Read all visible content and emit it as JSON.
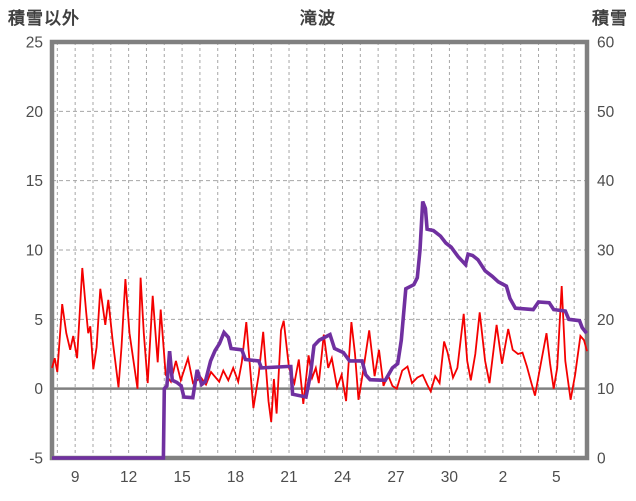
{
  "header": {
    "left_axis_title": "積雪以外",
    "chart_title": "滝波",
    "right_axis_title": "積雪"
  },
  "colors": {
    "non_snow_series": "#f40000",
    "snow_depth_series": "#7030a0",
    "frame": "#808080",
    "zero_line": "#808080",
    "gridline": "#a6a6a6",
    "tick_text": "#4d4d4d",
    "header_text": "#404040",
    "background": "#ffffff"
  },
  "chart_data": {
    "type": "line",
    "title": "滝波",
    "legend_position": "none",
    "grid": true,
    "x_unit": "date (day of month)",
    "x_domain": [
      -0.3,
      29.72
    ],
    "x_tick_positions": [
      1,
      4,
      7,
      10,
      13,
      16,
      19,
      22,
      25,
      28
    ],
    "x_tick_labels": [
      "9",
      "12",
      "15",
      "18",
      "21",
      "24",
      "27",
      "30",
      "2",
      "5"
    ],
    "x_gridlines": [
      0,
      1,
      2,
      3,
      4,
      5,
      6,
      7,
      8,
      9,
      10,
      11,
      12,
      13,
      14,
      15,
      16,
      17,
      18,
      19,
      20,
      21,
      22,
      23,
      24,
      25,
      26,
      27,
      28,
      29
    ],
    "left_axis": {
      "label": "積雪以外",
      "min": -5,
      "max": 25,
      "ticks": [
        -5,
        0,
        5,
        10,
        15,
        20,
        25
      ],
      "gridlines": [
        5,
        10,
        15,
        20
      ],
      "zero_line": 0
    },
    "right_axis": {
      "label": "積雪",
      "min": 0,
      "max": 60,
      "ticks": [
        0,
        10,
        20,
        30,
        40,
        50,
        60
      ]
    },
    "series": [
      {
        "name": "積雪以外",
        "axis": "left",
        "color": "#f40000",
        "width": 1.8,
        "points": [
          [
            -0.3,
            1.5
          ],
          [
            -0.15,
            2.2
          ],
          [
            0.0,
            1.2
          ],
          [
            0.27,
            6.1
          ],
          [
            0.5,
            4.0
          ],
          [
            0.72,
            2.8
          ],
          [
            0.89,
            3.8
          ],
          [
            1.11,
            2.2
          ],
          [
            1.4,
            8.7
          ],
          [
            1.62,
            5.5
          ],
          [
            1.73,
            4.0
          ],
          [
            1.85,
            4.5
          ],
          [
            2.02,
            1.4
          ],
          [
            2.2,
            3.0
          ],
          [
            2.41,
            7.2
          ],
          [
            2.69,
            4.6
          ],
          [
            2.86,
            6.4
          ],
          [
            3.1,
            3.5
          ],
          [
            3.26,
            1.9
          ],
          [
            3.43,
            0.1
          ],
          [
            3.6,
            3.0
          ],
          [
            3.82,
            7.9
          ],
          [
            4.05,
            4.0
          ],
          [
            4.16,
            3.0
          ],
          [
            4.5,
            0.0
          ],
          [
            4.67,
            8.0
          ],
          [
            4.85,
            4.0
          ],
          [
            5.07,
            0.4
          ],
          [
            5.35,
            6.7
          ],
          [
            5.63,
            1.9
          ],
          [
            5.8,
            5.7
          ],
          [
            6.08,
            1.0
          ],
          [
            6.37,
            0.5
          ],
          [
            6.65,
            2.0
          ],
          [
            6.93,
            0.6
          ],
          [
            7.33,
            2.2
          ],
          [
            7.61,
            0.4
          ],
          [
            8.06,
            0.8
          ],
          [
            8.34,
            0.3
          ],
          [
            8.62,
            1.2
          ],
          [
            9.08,
            0.5
          ],
          [
            9.31,
            1.3
          ],
          [
            9.59,
            0.6
          ],
          [
            9.87,
            1.5
          ],
          [
            10.15,
            0.5
          ],
          [
            10.35,
            1.9
          ],
          [
            10.6,
            4.8
          ],
          [
            11.0,
            -1.4
          ],
          [
            11.3,
            1.0
          ],
          [
            11.55,
            4.1
          ],
          [
            11.85,
            -0.9
          ],
          [
            12.0,
            -2.4
          ],
          [
            12.15,
            0.7
          ],
          [
            12.3,
            -1.8
          ],
          [
            12.55,
            4.2
          ],
          [
            12.7,
            4.9
          ],
          [
            13.0,
            1.5
          ],
          [
            13.3,
            0.4
          ],
          [
            13.55,
            2.1
          ],
          [
            13.8,
            -1.1
          ],
          [
            14.1,
            2.4
          ],
          [
            14.3,
            0.8
          ],
          [
            14.5,
            1.5
          ],
          [
            14.67,
            0.4
          ],
          [
            14.95,
            3.9
          ],
          [
            15.2,
            1.5
          ],
          [
            15.4,
            2.2
          ],
          [
            15.7,
            0.1
          ],
          [
            15.95,
            1.0
          ],
          [
            16.2,
            -0.9
          ],
          [
            16.5,
            4.8
          ],
          [
            16.7,
            2.5
          ],
          [
            16.9,
            -0.8
          ],
          [
            17.15,
            1.2
          ],
          [
            17.5,
            4.2
          ],
          [
            17.8,
            0.9
          ],
          [
            18.05,
            2.8
          ],
          [
            18.3,
            0.2
          ],
          [
            18.55,
            1.0
          ],
          [
            18.8,
            0.2
          ],
          [
            19.05,
            0.0
          ],
          [
            19.35,
            1.3
          ],
          [
            19.65,
            1.6
          ],
          [
            19.9,
            0.4
          ],
          [
            20.2,
            0.8
          ],
          [
            20.5,
            1.0
          ],
          [
            20.75,
            0.3
          ],
          [
            20.95,
            -0.2
          ],
          [
            21.2,
            0.9
          ],
          [
            21.45,
            0.4
          ],
          [
            21.7,
            3.4
          ],
          [
            21.9,
            2.6
          ],
          [
            22.2,
            0.8
          ],
          [
            22.45,
            1.5
          ],
          [
            22.8,
            5.4
          ],
          [
            23.0,
            2.0
          ],
          [
            23.2,
            0.6
          ],
          [
            23.45,
            2.5
          ],
          [
            23.7,
            5.5
          ],
          [
            24.0,
            2.0
          ],
          [
            24.25,
            0.4
          ],
          [
            24.65,
            4.6
          ],
          [
            24.95,
            1.8
          ],
          [
            25.3,
            4.3
          ],
          [
            25.55,
            2.8
          ],
          [
            25.85,
            2.5
          ],
          [
            26.1,
            2.6
          ],
          [
            26.35,
            1.6
          ],
          [
            26.6,
            0.4
          ],
          [
            26.8,
            -0.5
          ],
          [
            27.1,
            1.6
          ],
          [
            27.45,
            4.0
          ],
          [
            27.65,
            1.8
          ],
          [
            27.85,
            0.0
          ],
          [
            28.05,
            1.5
          ],
          [
            28.3,
            7.4
          ],
          [
            28.5,
            2.0
          ],
          [
            28.8,
            -0.8
          ],
          [
            29.05,
            1.0
          ],
          [
            29.35,
            3.8
          ],
          [
            29.55,
            3.5
          ],
          [
            29.72,
            2.7
          ]
        ]
      },
      {
        "name": "積雪",
        "axis": "right",
        "color": "#7030a0",
        "width": 3.6,
        "points": [
          [
            -0.3,
            0
          ],
          [
            5.95,
            0
          ],
          [
            6.0,
            10.0
          ],
          [
            6.15,
            10.4
          ],
          [
            6.3,
            15.4
          ],
          [
            6.45,
            11.2
          ],
          [
            6.7,
            10.9
          ],
          [
            6.95,
            10.4
          ],
          [
            7.1,
            8.8
          ],
          [
            7.6,
            8.7
          ],
          [
            7.85,
            12.7
          ],
          [
            8.1,
            10.6
          ],
          [
            8.3,
            11.0
          ],
          [
            8.6,
            14.0
          ],
          [
            8.85,
            15.5
          ],
          [
            9.1,
            16.5
          ],
          [
            9.35,
            18.1
          ],
          [
            9.6,
            17.4
          ],
          [
            9.75,
            15.8
          ],
          [
            10.35,
            15.6
          ],
          [
            10.55,
            14.2
          ],
          [
            11.3,
            14.0
          ],
          [
            11.45,
            13.0
          ],
          [
            12.9,
            13.2
          ],
          [
            13.1,
            13.2
          ],
          [
            13.2,
            9.2
          ],
          [
            13.95,
            8.8
          ],
          [
            14.2,
            12.0
          ],
          [
            14.4,
            16.2
          ],
          [
            14.7,
            17.0
          ],
          [
            15.3,
            17.8
          ],
          [
            15.55,
            15.8
          ],
          [
            16.05,
            15.2
          ],
          [
            16.4,
            14.0
          ],
          [
            17.1,
            14.0
          ],
          [
            17.3,
            12.0
          ],
          [
            17.55,
            11.3
          ],
          [
            18.4,
            11.2
          ],
          [
            18.8,
            13.0
          ],
          [
            19.1,
            13.6
          ],
          [
            19.3,
            17.0
          ],
          [
            19.55,
            24.4
          ],
          [
            20.0,
            25.0
          ],
          [
            20.2,
            26.0
          ],
          [
            20.35,
            30.0
          ],
          [
            20.5,
            37.0
          ],
          [
            20.65,
            36.0
          ],
          [
            20.75,
            33.0
          ],
          [
            21.1,
            32.8
          ],
          [
            21.5,
            32.0
          ],
          [
            21.8,
            31.0
          ],
          [
            22.1,
            30.4
          ],
          [
            22.5,
            29.0
          ],
          [
            22.9,
            27.9
          ],
          [
            23.05,
            29.4
          ],
          [
            23.3,
            29.2
          ],
          [
            23.6,
            28.6
          ],
          [
            24.0,
            27.0
          ],
          [
            24.4,
            26.2
          ],
          [
            24.75,
            25.4
          ],
          [
            25.2,
            24.8
          ],
          [
            25.4,
            23.0
          ],
          [
            25.7,
            21.6
          ],
          [
            26.7,
            21.4
          ],
          [
            27.0,
            22.5
          ],
          [
            27.6,
            22.4
          ],
          [
            27.85,
            21.4
          ],
          [
            28.5,
            21.2
          ],
          [
            28.7,
            20.0
          ],
          [
            29.3,
            19.8
          ],
          [
            29.45,
            18.8
          ],
          [
            29.7,
            18.0
          ]
        ]
      }
    ]
  }
}
